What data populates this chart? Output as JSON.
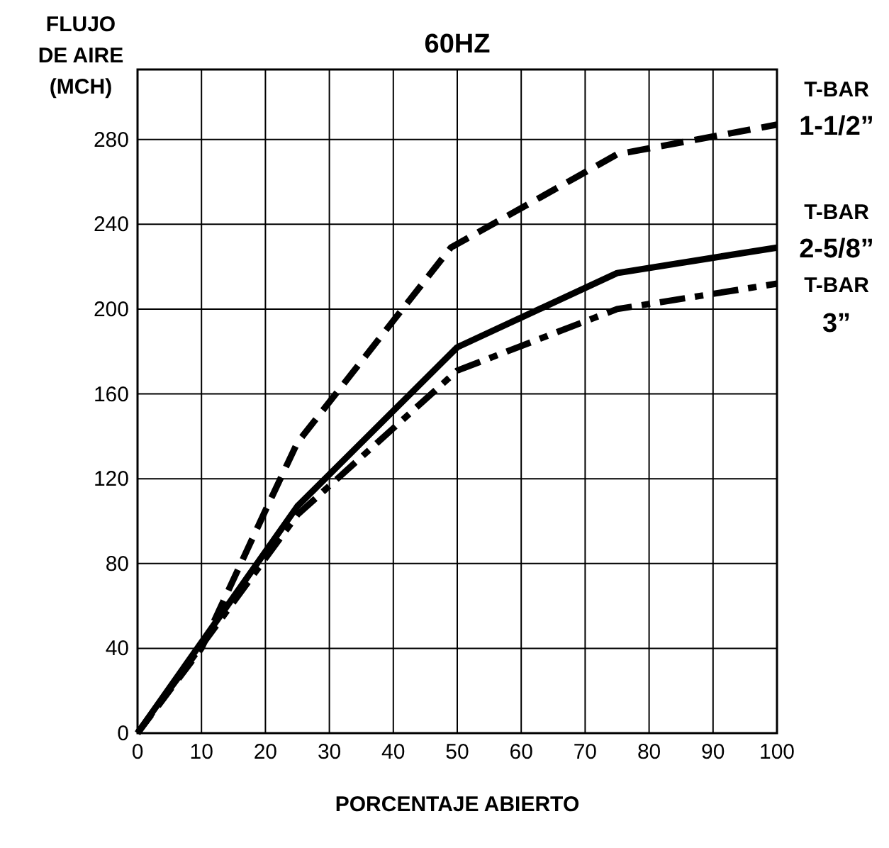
{
  "chart_data": {
    "type": "line",
    "title": "60HZ",
    "xlabel": "PORCENTAJE ABIERTO",
    "ylabel": "FLUJO\nDE AIRE\n(MCH)",
    "xlim": [
      0,
      100
    ],
    "ylim": [
      0,
      313
    ],
    "xticks": [
      0,
      10,
      20,
      30,
      40,
      50,
      60,
      70,
      80,
      90,
      100
    ],
    "yticks": [
      0,
      40,
      80,
      120,
      160,
      200,
      240,
      280
    ],
    "grid": true,
    "series": [
      {
        "name": "T-BAR 1-1/2”",
        "color": "#000000",
        "line_style": "dashed",
        "x": [
          0,
          10,
          20,
          25,
          49,
          75,
          100
        ],
        "values": [
          0,
          40,
          105,
          137,
          229,
          273,
          287
        ]
      },
      {
        "name": "T-BAR 2-5/8”",
        "color": "#000000",
        "line_style": "solid",
        "x": [
          0,
          25,
          50,
          75,
          100
        ],
        "values": [
          0,
          107,
          182,
          217,
          229
        ]
      },
      {
        "name": "T-BAR 3”",
        "color": "#000000",
        "line_style": "dotted",
        "x": [
          0,
          25,
          50,
          75,
          100
        ],
        "values": [
          0,
          103,
          171,
          200,
          212
        ]
      }
    ]
  }
}
